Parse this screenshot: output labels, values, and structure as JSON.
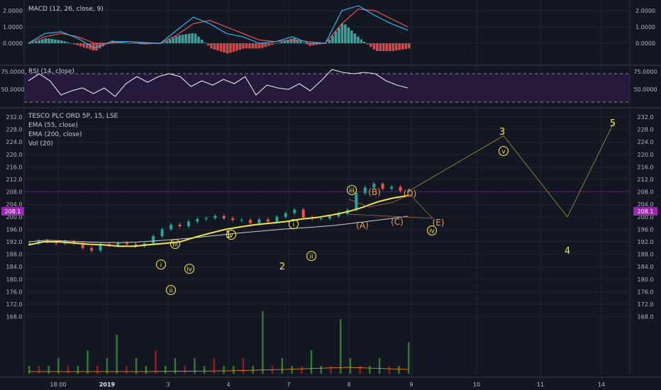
{
  "macd_panel": {
    "label": "MACD (12, 26, close, 9)",
    "ticks": [
      "2.0000",
      "1.0000",
      "0.0000"
    ],
    "tick_values": [
      2,
      1,
      0
    ]
  },
  "rsi_panel": {
    "label": "RSI (14, close)",
    "ticks": [
      "75.0000",
      "50.0000"
    ],
    "tick_values": [
      75,
      50
    ],
    "band_upper": 70,
    "band_lower": 30
  },
  "price_panel": {
    "legend": [
      "TESCO PLC ORD 5P, 15, LSE",
      "EMA (55, close)",
      "EMA (200, close)",
      "Vol (20)"
    ],
    "price_ticks": [
      "232.0",
      "228.0",
      "224.0",
      "220.0",
      "216.0",
      "212.0",
      "208.0",
      "204.0",
      "200.0",
      "196.0",
      "192.0",
      "188.0",
      "184.0",
      "180.0",
      "176.0",
      "172.0",
      "168.0"
    ],
    "current_price": "208.1"
  },
  "time_axis": [
    "18:00",
    "2019",
    "3",
    "4",
    "7",
    "8",
    "9",
    "10",
    "11",
    "14"
  ],
  "wave_labels_yellow": [
    "1",
    "2",
    "3",
    "4",
    "5"
  ],
  "wave_labels_circled": [
    "i",
    "ii",
    "iii",
    "iv",
    "v",
    "i",
    "ii",
    "iii",
    "iv",
    "v"
  ],
  "wave_labels_orange": [
    "(A)",
    "(B)",
    "(C)",
    "(D)",
    "(E)"
  ],
  "chart_data": [
    {
      "type": "line",
      "panel": "MACD",
      "title": "MACD (12, 26, close, 9)",
      "ylim": [
        -0.3,
        2.4
      ],
      "grid": true,
      "series": [
        {
          "name": "MACD",
          "values": [
            0.0,
            0.6,
            0.7,
            0.3,
            -0.3,
            0.1,
            0.1,
            0.0,
            0.0,
            0.8,
            1.6,
            1.2,
            0.6,
            0.4,
            0.0,
            0.1,
            0.4,
            0.0,
            0.0,
            2.0,
            2.3,
            1.7,
            1.2,
            0.8
          ]
        },
        {
          "name": "Signal",
          "values": [
            0.0,
            0.4,
            0.6,
            0.4,
            0.0,
            0.0,
            0.1,
            0.05,
            0.0,
            0.5,
            1.2,
            1.4,
            1.0,
            0.6,
            0.2,
            0.1,
            0.2,
            0.1,
            0.0,
            1.2,
            2.1,
            2.0,
            1.5,
            1.0
          ]
        }
      ]
    },
    {
      "type": "line",
      "panel": "RSI",
      "title": "RSI (14, close)",
      "ylim": [
        15,
        85
      ],
      "grid": true,
      "series": [
        {
          "name": "RSI",
          "values": [
            60,
            70,
            60,
            40,
            46,
            50,
            42,
            50,
            38,
            56,
            66,
            58,
            66,
            70,
            66,
            52,
            60,
            54,
            62,
            56,
            66,
            40,
            54,
            50,
            48,
            56,
            46,
            60,
            76,
            72,
            70,
            72,
            70,
            60,
            54,
            50
          ]
        }
      ]
    },
    {
      "type": "line",
      "panel": "Price",
      "title": "TESCO PLC ORD 5P, 15, LSE",
      "ylim": [
        166,
        234
      ],
      "grid": true,
      "series": [
        {
          "name": "Close",
          "values": [
            191.5,
            192.4,
            192.0,
            191.5,
            192.1,
            191.6,
            190.0,
            189.2,
            191.2,
            190.8,
            191.6,
            191.2,
            190.6,
            191.5,
            193.8,
            196.0,
            197.5,
            197.0,
            198.5,
            199.3,
            199.6,
            200.3,
            199.5,
            199.0,
            199.0,
            198.0,
            199.2,
            198.5,
            200.0,
            201.2,
            202.3,
            199.8,
            199.4,
            199.5,
            200.2,
            201.0,
            202.2,
            207.6,
            209.4,
            210.6,
            209.0,
            209.6,
            208.4,
            208.7
          ]
        },
        {
          "name": "EMA (55, close)",
          "values": [
            191.0,
            192.0,
            192.0,
            191.6,
            191.2,
            191.0,
            190.6,
            190.6,
            191.1,
            191.5,
            192.0,
            193.5,
            194.8,
            196.0,
            196.8,
            197.5,
            198.0,
            198.5,
            199.3,
            199.8,
            200.6,
            201.6,
            203.0,
            204.8,
            206.0,
            206.8
          ]
        },
        {
          "name": "EMA (200, close)",
          "values": [
            192.0,
            192.5,
            192.3,
            192.0,
            191.8,
            191.7,
            191.9,
            192.3,
            192.7,
            193.2,
            193.8,
            194.4,
            195.0,
            195.5,
            196.0,
            196.4,
            196.8,
            197.3,
            198.0,
            198.7,
            199.4,
            200.2
          ]
        },
        {
          "name": "Vol (20)",
          "values": [
            1,
            1,
            1,
            2,
            1,
            1,
            3,
            1,
            2,
            5,
            1,
            2,
            1,
            3,
            1,
            2,
            1,
            2,
            1,
            2,
            1,
            1,
            2,
            1,
            8,
            1,
            2,
            1,
            1,
            3,
            1,
            1,
            7,
            2,
            1,
            1,
            2,
            1,
            1,
            4
          ]
        }
      ],
      "projection": {
        "name": "Elliott wave projection",
        "x": [
          "8",
          "10",
          "11",
          "14"
        ],
        "values": [
          208.1,
          226.0,
          200.0,
          230.0
        ]
      }
    }
  ]
}
